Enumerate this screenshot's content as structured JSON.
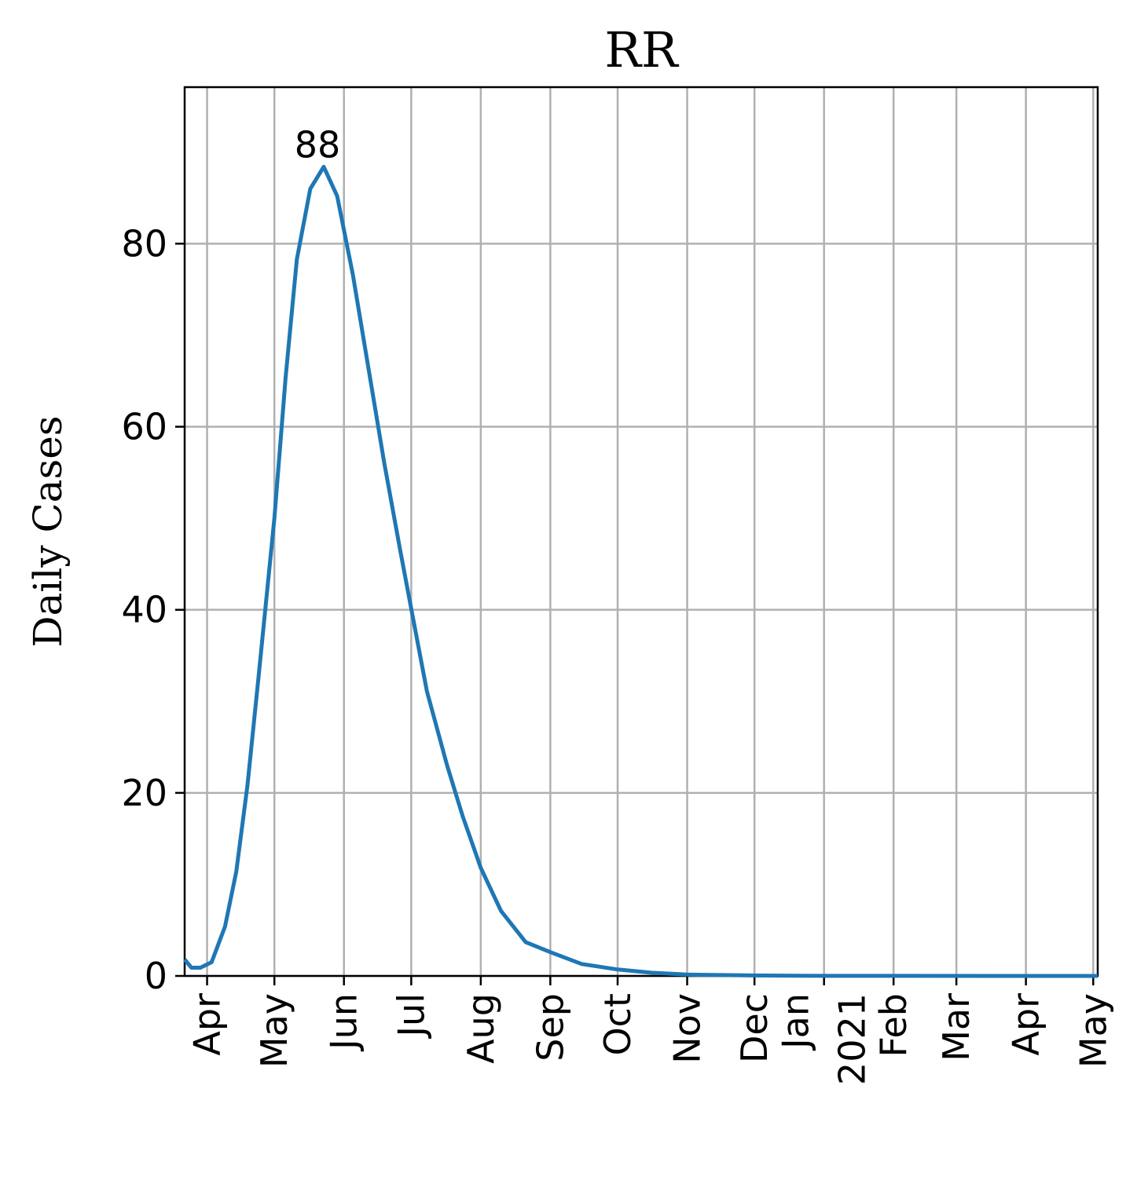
{
  "chart_data": {
    "type": "line",
    "title": "RR",
    "y_label": "Daily Cases",
    "x": [
      "2020-03-22",
      "2020-03-25",
      "2020-03-29",
      "2020-04-03",
      "2020-04-09",
      "2020-04-14",
      "2020-04-19",
      "2020-04-24",
      "2020-05-01",
      "2020-05-06",
      "2020-05-11",
      "2020-05-17",
      "2020-05-23",
      "2020-05-29",
      "2020-06-05",
      "2020-06-12",
      "2020-06-19",
      "2020-06-26",
      "2020-07-01",
      "2020-07-08",
      "2020-07-17",
      "2020-07-24",
      "2020-08-01",
      "2020-08-10",
      "2020-08-21",
      "2020-09-01",
      "2020-09-15",
      "2020-10-01",
      "2020-10-16",
      "2020-11-01",
      "2020-12-01",
      "2021-01-01",
      "2021-05-03"
    ],
    "series": [
      {
        "color": "#1f77b4",
        "values": [
          1.8,
          0.9,
          0.9,
          1.5,
          5.4,
          11.4,
          20.8,
          32.8,
          50,
          65.4,
          78.3,
          86,
          88.4,
          85.2,
          76.6,
          66.3,
          56,
          46.6,
          40.1,
          31.1,
          23,
          17.4,
          11.8,
          7.1,
          3.7,
          2.6,
          1.3,
          0.7,
          0.35,
          0.15,
          0.05,
          0.01,
          0
        ]
      }
    ],
    "annotations": [
      {
        "text": "88",
        "x": "2020-05-23",
        "y": 88.4
      }
    ],
    "xlim": [
      "2020-03-22",
      "2021-05-03"
    ],
    "xticks": [
      {
        "value": "2020-04-01",
        "label": "Apr"
      },
      {
        "value": "2020-05-01",
        "label": "May"
      },
      {
        "value": "2020-06-01",
        "label": "Jun"
      },
      {
        "value": "2020-07-01",
        "label": "Jul"
      },
      {
        "value": "2020-08-01",
        "label": "Aug"
      },
      {
        "value": "2020-09-01",
        "label": "Sep"
      },
      {
        "value": "2020-10-01",
        "label": "Oct"
      },
      {
        "value": "2020-11-01",
        "label": "Nov"
      },
      {
        "value": "2020-12-01",
        "label": "Dec"
      },
      {
        "value": "2021-01-01",
        "label": "Jan",
        "year": "2021"
      },
      {
        "value": "2021-02-01",
        "label": "Feb"
      },
      {
        "value": "2021-03-01",
        "label": "Mar"
      },
      {
        "value": "2021-04-01",
        "label": "Apr"
      },
      {
        "value": "2021-05-01",
        "label": "May"
      }
    ],
    "ylim": [
      0,
      97.1
    ],
    "yticks": [
      0,
      20,
      40,
      60,
      80
    ],
    "grid": true
  }
}
